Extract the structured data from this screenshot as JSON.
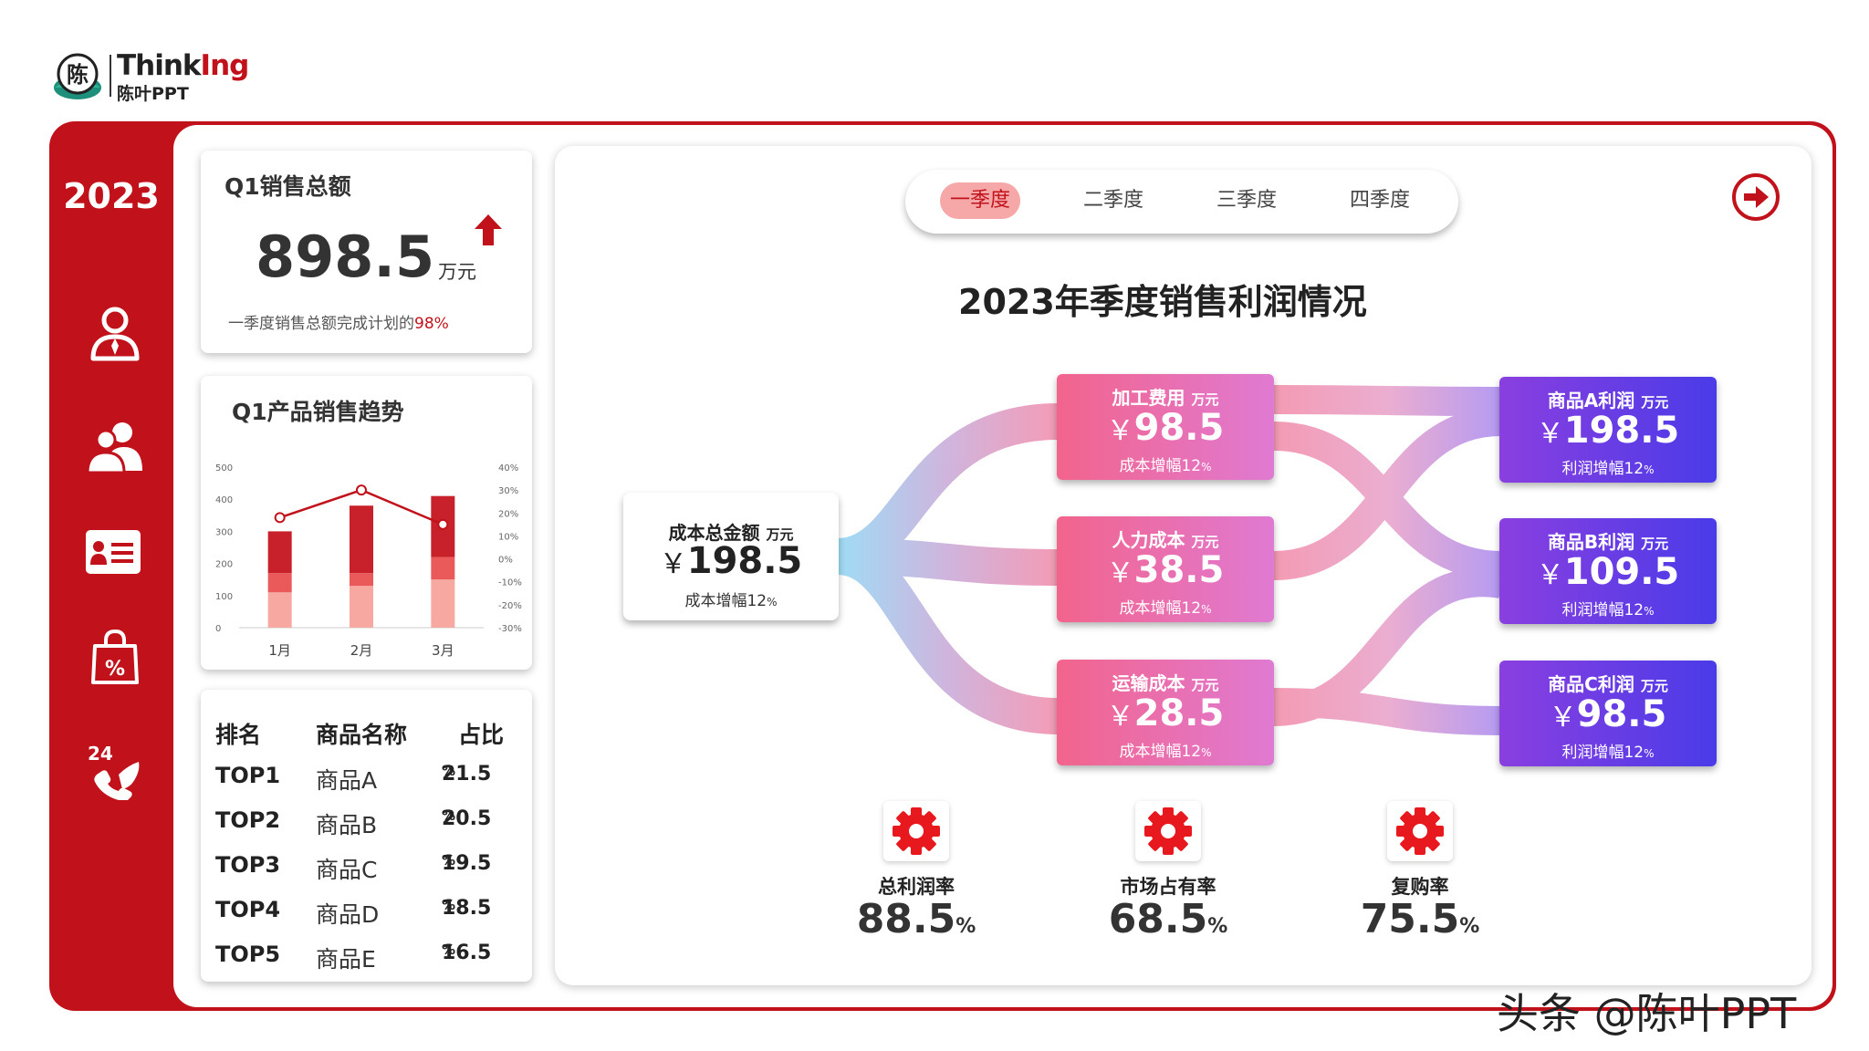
{
  "logo": {
    "brand_prefix": "Think",
    "brand_accent": "Ing",
    "brand_mark": "陈",
    "brand_cn": "陈叶PPT"
  },
  "sidebar": {
    "year": "2023",
    "items": [
      {
        "icon": "user-tie-icon"
      },
      {
        "icon": "users-icon"
      },
      {
        "icon": "id-card-icon",
        "active": true
      },
      {
        "icon": "shopping-bag-percent-icon"
      },
      {
        "icon": "phone-24-icon",
        "badge": "24"
      }
    ]
  },
  "sales_card": {
    "title": "Q1销售总额",
    "value": "898.5",
    "unit": "万元",
    "note_prefix": "一季度销售总额完成计划的",
    "note_pct": "98%"
  },
  "trend_card": {
    "title": "Q1产品销售趋势"
  },
  "chart_data": {
    "type": "bar",
    "categories": [
      "1月",
      "2月",
      "3月"
    ],
    "series": [
      {
        "values": [
          110,
          130,
          150
        ]
      },
      {
        "values": [
          60,
          40,
          70
        ]
      },
      {
        "values": [
          130,
          210,
          190
        ]
      }
    ],
    "line_values": [
      18,
      30,
      15
    ],
    "ylim": [
      0,
      500
    ],
    "yticks": [
      "500",
      "400",
      "300",
      "200",
      "100",
      "0"
    ],
    "y2lim": [
      -30,
      40
    ],
    "y2ticks": [
      "40%",
      "30%",
      "20%",
      "10%",
      "0%",
      "-10%",
      "-20%",
      "-30%"
    ],
    "colors": [
      "#f7a8a0",
      "#ea5a5a",
      "#c8212b",
      "#c1121c"
    ]
  },
  "rank_table": {
    "headers": [
      "排名",
      "商品名称",
      "占比"
    ],
    "rows": [
      {
        "rank": "TOP1",
        "name": "商品A",
        "pct": "21.5",
        "unit": "%"
      },
      {
        "rank": "TOP2",
        "name": "商品B",
        "pct": "20.5",
        "unit": "%"
      },
      {
        "rank": "TOP3",
        "name": "商品C",
        "pct": "19.5",
        "unit": "%"
      },
      {
        "rank": "TOP4",
        "name": "商品D",
        "pct": "18.5",
        "unit": "%"
      },
      {
        "rank": "TOP5",
        "name": "商品E",
        "pct": "16.5",
        "unit": "%"
      }
    ]
  },
  "tabs": [
    "一季度",
    "二季度",
    "三季度",
    "四季度"
  ],
  "main_title": "2023年季度销售利润情况",
  "flow": {
    "total": {
      "label": "成本总金额",
      "unit": "万元",
      "yen": "￥",
      "value": "198.5",
      "sub": "成本增幅12",
      "sub_unit": "%"
    },
    "costs": [
      {
        "label": "加工费用",
        "unit": "万元",
        "yen": "￥",
        "value": "98.5",
        "sub": "成本增幅12",
        "sub_unit": "%"
      },
      {
        "label": "人力成本",
        "unit": "万元",
        "yen": "￥",
        "value": "38.5",
        "sub": "成本增幅12",
        "sub_unit": "%"
      },
      {
        "label": "运输成本",
        "unit": "万元",
        "yen": "￥",
        "value": "28.5",
        "sub": "成本增幅12",
        "sub_unit": "%"
      }
    ],
    "profits": [
      {
        "label": "商品A利润",
        "unit": "万元",
        "yen": "￥",
        "value": "198.5",
        "sub": "利润增幅12",
        "sub_unit": "%"
      },
      {
        "label": "商品B利润",
        "unit": "万元",
        "yen": "￥",
        "value": "109.5",
        "sub": "利润增幅12",
        "sub_unit": "%"
      },
      {
        "label": "商品C利润",
        "unit": "万元",
        "yen": "￥",
        "value": "98.5",
        "sub": "利润增幅12",
        "sub_unit": "%"
      }
    ]
  },
  "kpis": [
    {
      "label": "总利润率",
      "value": "88.5",
      "unit": "%",
      "icon": "gear-icon"
    },
    {
      "label": "市场占有率",
      "value": "68.5",
      "unit": "%",
      "icon": "gear-icon"
    },
    {
      "label": "复购率",
      "value": "75.5",
      "unit": "%",
      "icon": "gear-icon"
    }
  ],
  "watermark": "头条 @陈叶PPT"
}
